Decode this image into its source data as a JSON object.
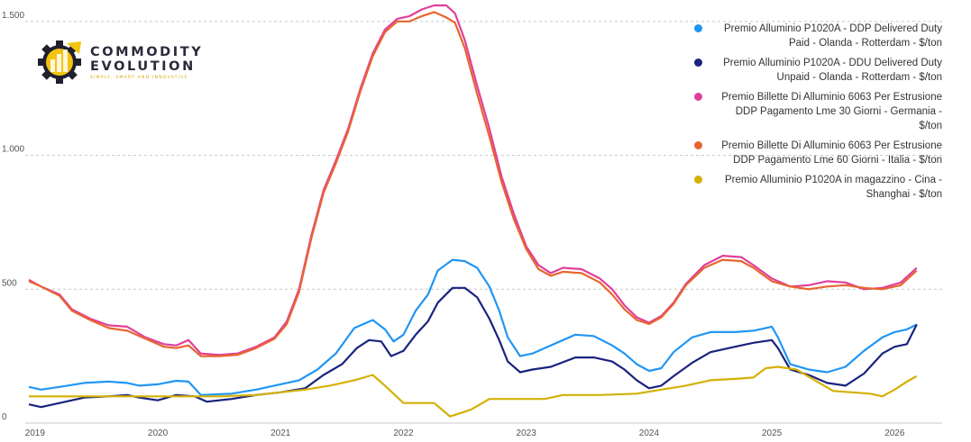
{
  "logo": {
    "line1": "COMMODITY",
    "line2": "EVOLUTION",
    "tagline": "SIMPLY, SMART AND INNOVATIVE"
  },
  "colors": {
    "s1": "#2196f3",
    "s2": "#1a237e",
    "s3": "#e0409a",
    "s4": "#e8652f",
    "s5": "#d4b106",
    "grid": "#c8c8c8",
    "logo_accent": "#f2c40f",
    "logo_dark": "#1f1f2e"
  },
  "chart_data": {
    "type": "line",
    "title": "",
    "xlabel": "",
    "ylabel": "",
    "xlim": [
      2018.95,
      2026.35
    ],
    "ylim": [
      0,
      1560
    ],
    "grid": true,
    "legend": "top-right",
    "x_ticks": [
      2019,
      2020,
      2021,
      2022,
      2023,
      2024,
      2025,
      2026
    ],
    "x_tick_labels": [
      "2019",
      "2020",
      "2021",
      "2022",
      "2023",
      "2024",
      "2025",
      "2026"
    ],
    "y_ticks": [
      0,
      500,
      1000,
      1500
    ],
    "y_tick_labels": [
      "0",
      "500",
      "1.000",
      "1.500"
    ],
    "series": [
      {
        "name": "Premio Alluminio P1020A - DDP Delivered Duty Paid - Olanda - Rotterdam - $/ton",
        "color_key": "s1",
        "points": [
          [
            2018.95,
            135
          ],
          [
            2019.05,
            125
          ],
          [
            2019.2,
            135
          ],
          [
            2019.4,
            150
          ],
          [
            2019.6,
            155
          ],
          [
            2019.75,
            150
          ],
          [
            2019.85,
            140
          ],
          [
            2020.0,
            145
          ],
          [
            2020.15,
            158
          ],
          [
            2020.25,
            155
          ],
          [
            2020.35,
            105
          ],
          [
            2020.6,
            110
          ],
          [
            2020.8,
            125
          ],
          [
            2021.0,
            145
          ],
          [
            2021.15,
            160
          ],
          [
            2021.3,
            200
          ],
          [
            2021.45,
            260
          ],
          [
            2021.6,
            355
          ],
          [
            2021.75,
            385
          ],
          [
            2021.85,
            350
          ],
          [
            2021.92,
            305
          ],
          [
            2022.0,
            330
          ],
          [
            2022.1,
            420
          ],
          [
            2022.2,
            480
          ],
          [
            2022.28,
            570
          ],
          [
            2022.4,
            610
          ],
          [
            2022.5,
            605
          ],
          [
            2022.6,
            580
          ],
          [
            2022.7,
            510
          ],
          [
            2022.78,
            420
          ],
          [
            2022.85,
            320
          ],
          [
            2022.95,
            250
          ],
          [
            2023.05,
            260
          ],
          [
            2023.2,
            290
          ],
          [
            2023.4,
            330
          ],
          [
            2023.55,
            325
          ],
          [
            2023.7,
            290
          ],
          [
            2023.8,
            260
          ],
          [
            2023.9,
            220
          ],
          [
            2024.0,
            195
          ],
          [
            2024.1,
            205
          ],
          [
            2024.2,
            265
          ],
          [
            2024.35,
            320
          ],
          [
            2024.5,
            340
          ],
          [
            2024.7,
            340
          ],
          [
            2024.85,
            345
          ],
          [
            2025.0,
            360
          ],
          [
            2025.05,
            320
          ],
          [
            2025.15,
            220
          ],
          [
            2025.3,
            200
          ],
          [
            2025.45,
            190
          ],
          [
            2025.6,
            210
          ],
          [
            2025.75,
            270
          ],
          [
            2025.9,
            320
          ],
          [
            2026.0,
            340
          ],
          [
            2026.1,
            350
          ],
          [
            2026.18,
            368
          ]
        ]
      },
      {
        "name": "Premio Alluminio P1020A - DDU Delivered Duty Unpaid - Olanda - Rotterdam - $/ton",
        "color_key": "s2",
        "points": [
          [
            2018.95,
            70
          ],
          [
            2019.05,
            60
          ],
          [
            2019.2,
            75
          ],
          [
            2019.4,
            95
          ],
          [
            2019.6,
            100
          ],
          [
            2019.75,
            105
          ],
          [
            2019.85,
            95
          ],
          [
            2020.0,
            85
          ],
          [
            2020.15,
            105
          ],
          [
            2020.3,
            100
          ],
          [
            2020.4,
            80
          ],
          [
            2020.6,
            90
          ],
          [
            2020.8,
            105
          ],
          [
            2021.0,
            115
          ],
          [
            2021.2,
            130
          ],
          [
            2021.35,
            180
          ],
          [
            2021.5,
            220
          ],
          [
            2021.62,
            280
          ],
          [
            2021.72,
            310
          ],
          [
            2021.82,
            305
          ],
          [
            2021.9,
            250
          ],
          [
            2022.0,
            270
          ],
          [
            2022.1,
            330
          ],
          [
            2022.2,
            380
          ],
          [
            2022.28,
            450
          ],
          [
            2022.4,
            505
          ],
          [
            2022.5,
            505
          ],
          [
            2022.6,
            470
          ],
          [
            2022.7,
            390
          ],
          [
            2022.78,
            310
          ],
          [
            2022.85,
            230
          ],
          [
            2022.95,
            190
          ],
          [
            2023.05,
            200
          ],
          [
            2023.2,
            210
          ],
          [
            2023.4,
            245
          ],
          [
            2023.55,
            245
          ],
          [
            2023.7,
            230
          ],
          [
            2023.8,
            200
          ],
          [
            2023.9,
            160
          ],
          [
            2024.0,
            130
          ],
          [
            2024.1,
            140
          ],
          [
            2024.2,
            175
          ],
          [
            2024.35,
            225
          ],
          [
            2024.5,
            265
          ],
          [
            2024.7,
            285
          ],
          [
            2024.85,
            300
          ],
          [
            2025.0,
            310
          ],
          [
            2025.05,
            280
          ],
          [
            2025.15,
            200
          ],
          [
            2025.3,
            180
          ],
          [
            2025.45,
            150
          ],
          [
            2025.6,
            140
          ],
          [
            2025.75,
            185
          ],
          [
            2025.9,
            260
          ],
          [
            2026.0,
            285
          ],
          [
            2026.1,
            295
          ],
          [
            2026.18,
            368
          ]
        ]
      },
      {
        "name": "Premio Billette Di Alluminio 6063 Per Estrusione DDP Pagamento Lme 30 Giorni - Germania - $/ton",
        "color_key": "s3",
        "points": [
          [
            2018.95,
            535
          ],
          [
            2019.05,
            510
          ],
          [
            2019.2,
            480
          ],
          [
            2019.3,
            425
          ],
          [
            2019.45,
            390
          ],
          [
            2019.6,
            365
          ],
          [
            2019.75,
            360
          ],
          [
            2019.9,
            320
          ],
          [
            2020.05,
            295
          ],
          [
            2020.15,
            290
          ],
          [
            2020.25,
            310
          ],
          [
            2020.35,
            260
          ],
          [
            2020.5,
            255
          ],
          [
            2020.65,
            260
          ],
          [
            2020.8,
            285
          ],
          [
            2020.95,
            320
          ],
          [
            2021.05,
            380
          ],
          [
            2021.15,
            500
          ],
          [
            2021.25,
            700
          ],
          [
            2021.35,
            870
          ],
          [
            2021.45,
            980
          ],
          [
            2021.55,
            1100
          ],
          [
            2021.65,
            1250
          ],
          [
            2021.75,
            1380
          ],
          [
            2021.85,
            1470
          ],
          [
            2021.95,
            1510
          ],
          [
            2022.05,
            1520
          ],
          [
            2022.15,
            1545
          ],
          [
            2022.25,
            1560
          ],
          [
            2022.35,
            1560
          ],
          [
            2022.42,
            1530
          ],
          [
            2022.5,
            1430
          ],
          [
            2022.6,
            1260
          ],
          [
            2022.7,
            1100
          ],
          [
            2022.8,
            920
          ],
          [
            2022.9,
            780
          ],
          [
            2023.0,
            660
          ],
          [
            2023.1,
            590
          ],
          [
            2023.2,
            560
          ],
          [
            2023.3,
            580
          ],
          [
            2023.45,
            575
          ],
          [
            2023.6,
            540
          ],
          [
            2023.7,
            500
          ],
          [
            2023.8,
            440
          ],
          [
            2023.9,
            395
          ],
          [
            2024.0,
            375
          ],
          [
            2024.1,
            400
          ],
          [
            2024.2,
            450
          ],
          [
            2024.3,
            520
          ],
          [
            2024.45,
            590
          ],
          [
            2024.6,
            625
          ],
          [
            2024.75,
            620
          ],
          [
            2024.85,
            590
          ],
          [
            2025.0,
            540
          ],
          [
            2025.15,
            510
          ],
          [
            2025.3,
            515
          ],
          [
            2025.45,
            530
          ],
          [
            2025.6,
            525
          ],
          [
            2025.75,
            500
          ],
          [
            2025.9,
            505
          ],
          [
            2026.05,
            525
          ],
          [
            2026.18,
            580
          ]
        ]
      },
      {
        "name": "Premio Billette Di Alluminio 6063 Per Estrusione DDP Pagamento Lme 60 Giorni - Italia - $/ton",
        "color_key": "s4",
        "points": [
          [
            2018.95,
            530
          ],
          [
            2019.05,
            510
          ],
          [
            2019.2,
            475
          ],
          [
            2019.3,
            420
          ],
          [
            2019.45,
            385
          ],
          [
            2019.6,
            355
          ],
          [
            2019.75,
            345
          ],
          [
            2019.9,
            315
          ],
          [
            2020.05,
            285
          ],
          [
            2020.15,
            280
          ],
          [
            2020.25,
            290
          ],
          [
            2020.35,
            250
          ],
          [
            2020.5,
            250
          ],
          [
            2020.65,
            255
          ],
          [
            2020.8,
            280
          ],
          [
            2020.95,
            315
          ],
          [
            2021.05,
            370
          ],
          [
            2021.15,
            490
          ],
          [
            2021.25,
            690
          ],
          [
            2021.35,
            860
          ],
          [
            2021.45,
            970
          ],
          [
            2021.55,
            1090
          ],
          [
            2021.65,
            1240
          ],
          [
            2021.75,
            1370
          ],
          [
            2021.85,
            1460
          ],
          [
            2021.95,
            1500
          ],
          [
            2022.05,
            1500
          ],
          [
            2022.15,
            1520
          ],
          [
            2022.25,
            1535
          ],
          [
            2022.35,
            1515
          ],
          [
            2022.42,
            1495
          ],
          [
            2022.5,
            1400
          ],
          [
            2022.6,
            1230
          ],
          [
            2022.7,
            1070
          ],
          [
            2022.8,
            900
          ],
          [
            2022.9,
            760
          ],
          [
            2023.0,
            650
          ],
          [
            2023.1,
            575
          ],
          [
            2023.2,
            550
          ],
          [
            2023.3,
            565
          ],
          [
            2023.45,
            560
          ],
          [
            2023.6,
            525
          ],
          [
            2023.7,
            480
          ],
          [
            2023.8,
            425
          ],
          [
            2023.9,
            385
          ],
          [
            2024.0,
            370
          ],
          [
            2024.1,
            395
          ],
          [
            2024.2,
            445
          ],
          [
            2024.3,
            515
          ],
          [
            2024.45,
            580
          ],
          [
            2024.6,
            610
          ],
          [
            2024.75,
            605
          ],
          [
            2024.85,
            580
          ],
          [
            2025.0,
            530
          ],
          [
            2025.15,
            510
          ],
          [
            2025.3,
            500
          ],
          [
            2025.45,
            510
          ],
          [
            2025.6,
            515
          ],
          [
            2025.75,
            505
          ],
          [
            2025.9,
            500
          ],
          [
            2026.05,
            515
          ],
          [
            2026.18,
            570
          ]
        ]
      },
      {
        "name": "Premio Alluminio P1020A in magazzino - Cina - Shanghai - $/ton",
        "color_key": "s5",
        "points": [
          [
            2018.95,
            100
          ],
          [
            2019.1,
            100
          ],
          [
            2019.4,
            100
          ],
          [
            2019.8,
            100
          ],
          [
            2020.2,
            100
          ],
          [
            2020.5,
            100
          ],
          [
            2020.8,
            105
          ],
          [
            2021.0,
            115
          ],
          [
            2021.2,
            125
          ],
          [
            2021.4,
            140
          ],
          [
            2021.6,
            160
          ],
          [
            2021.75,
            180
          ],
          [
            2021.85,
            140
          ],
          [
            2022.0,
            75
          ],
          [
            2022.25,
            75
          ],
          [
            2022.38,
            25
          ],
          [
            2022.55,
            50
          ],
          [
            2022.7,
            90
          ],
          [
            2022.9,
            90
          ],
          [
            2023.15,
            90
          ],
          [
            2023.3,
            105
          ],
          [
            2023.6,
            105
          ],
          [
            2023.9,
            110
          ],
          [
            2024.1,
            125
          ],
          [
            2024.3,
            140
          ],
          [
            2024.5,
            160
          ],
          [
            2024.7,
            165
          ],
          [
            2024.85,
            170
          ],
          [
            2024.95,
            205
          ],
          [
            2025.05,
            210
          ],
          [
            2025.2,
            200
          ],
          [
            2025.35,
            160
          ],
          [
            2025.5,
            120
          ],
          [
            2025.65,
            115
          ],
          [
            2025.8,
            110
          ],
          [
            2025.9,
            100
          ],
          [
            2026.0,
            125
          ],
          [
            2026.1,
            155
          ],
          [
            2026.18,
            175
          ]
        ]
      }
    ]
  }
}
